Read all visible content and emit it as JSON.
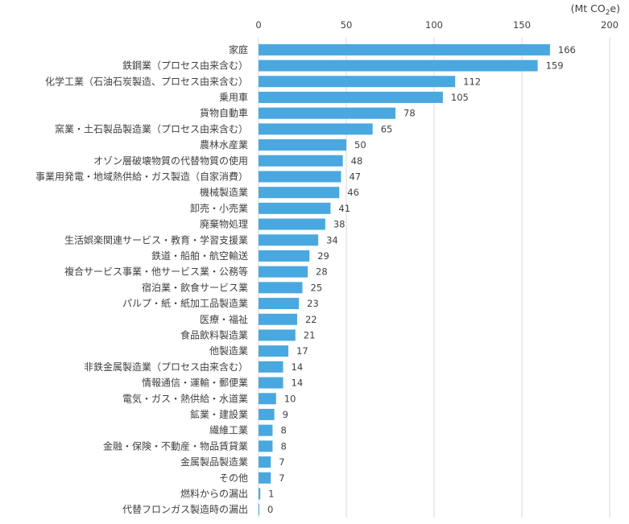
{
  "chart_data": {
    "type": "bar",
    "orientation": "horizontal",
    "unit_label": {
      "prefix": "(Mt CO",
      "sub": "2",
      "suffix": "e)"
    },
    "xlim": [
      0,
      200
    ],
    "x_ticks": [
      "0",
      "50",
      "100",
      "150",
      "200"
    ],
    "grid": true,
    "bar_color": "#4aa8e0",
    "categories": [
      "家庭",
      "鉄鋼業（プロセス由来含む）",
      "化学工業（石油石炭製造、プロセス由来含む）",
      "乗用車",
      "貨物自動車",
      "窯業・土石製品製造業（プロセス由来含む）",
      "農林水産業",
      "オゾン層破壊物質の代替物質の使用",
      "事業用発電・地域熱供給・ガス製造（自家消費）",
      "機械製造業",
      "卸売・小売業",
      "廃棄物処理",
      "生活娯楽関連サービス・教育・学習支援業",
      "鉄道・船舶・航空輸送",
      "複合サービス事業・他サービス業・公務等",
      "宿泊業・飲食サービス業",
      "パルプ・紙・紙加工品製造業",
      "医療・福祉",
      "食品飲料製造業",
      "他製造業",
      "非鉄金属製造業（プロセス由来含む）",
      "情報通信・運輸・郵便業",
      "電気・ガス・熱供給・水道業",
      "鉱業・建設業",
      "繊維工業",
      "金融・保険・不動産・物品賃貸業",
      "金属製品製造業",
      "その他",
      "燃料からの漏出",
      "代替フロンガス製造時の漏出"
    ],
    "values": [
      166,
      159,
      112,
      105,
      78,
      65,
      50,
      48,
      47,
      46,
      41,
      38,
      34,
      29,
      28,
      25,
      23,
      22,
      21,
      17,
      14,
      14,
      10,
      9,
      8,
      8,
      7,
      7,
      1,
      0
    ]
  }
}
